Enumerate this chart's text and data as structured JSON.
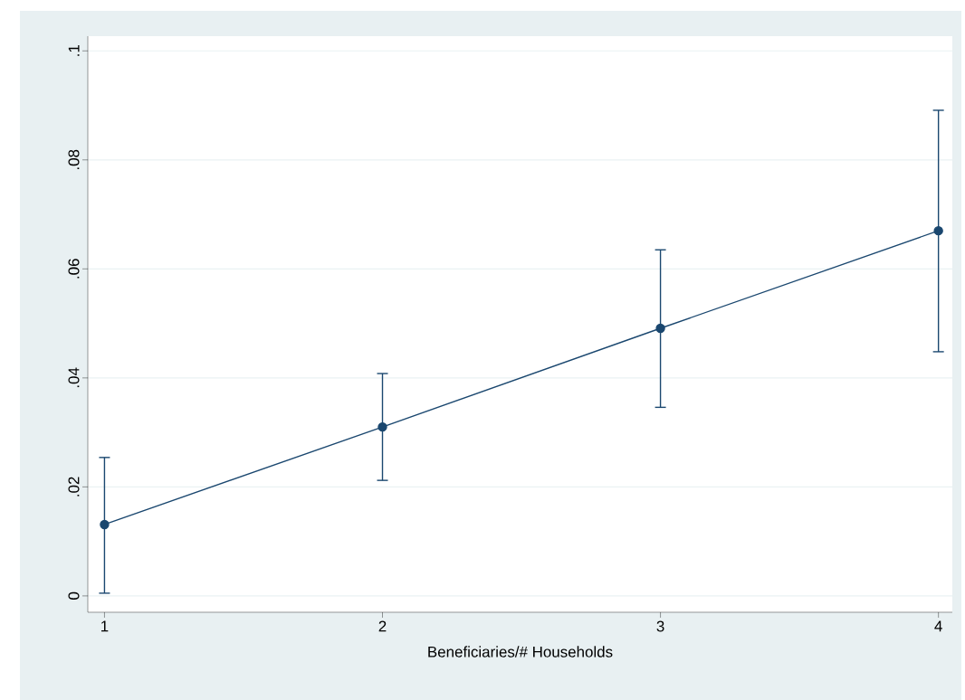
{
  "chart_data": {
    "type": "line",
    "xlabel": "Beneficiaries/# Households",
    "x": [
      1,
      2,
      3,
      4
    ],
    "series": [
      {
        "color": "#1a476f",
        "values": [
          0.0131,
          0.031,
          0.0491,
          0.067
        ],
        "errors": [
          [
            0.0005,
            0.0254
          ],
          [
            0.0212,
            0.0408
          ],
          [
            0.0346,
            0.0635
          ],
          [
            0.0448,
            0.0891
          ]
        ]
      }
    ],
    "xlim": [
      0.94,
      4.05
    ],
    "ylim": [
      -0.003,
      0.1027
    ],
    "xticks": [
      1,
      2,
      3,
      4
    ],
    "yticks": [
      0,
      {
        "value": 0.02,
        "label": ".02"
      },
      {
        "value": 0.04,
        "label": ".04"
      },
      {
        "value": 0.06,
        "label": ".06"
      },
      {
        "value": 0.08,
        "label": ".08"
      },
      {
        "value": 0.1,
        "label": ".1"
      }
    ],
    "grid": "y",
    "marker": "circle",
    "line_style": "solid"
  }
}
